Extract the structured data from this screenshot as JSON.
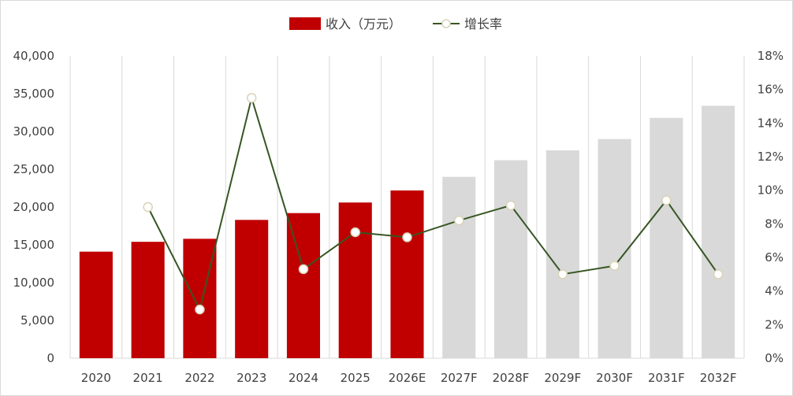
{
  "chart_data": {
    "type": "bar",
    "categories": [
      "2020",
      "2021",
      "2022",
      "2023",
      "2024",
      "2025",
      "2026E",
      "2027F",
      "2028F",
      "2029F",
      "2030F",
      "2031F",
      "2032F"
    ],
    "series": [
      {
        "name": "收入（万元）",
        "kind": "bar",
        "axis": "left",
        "values": [
          14100,
          15400,
          15800,
          18300,
          19200,
          20600,
          22200,
          24000,
          26200,
          27500,
          29000,
          31800,
          33400
        ],
        "colors": [
          "#c00000",
          "#c00000",
          "#c00000",
          "#c00000",
          "#c00000",
          "#c00000",
          "#c00000",
          "#d9d9d9",
          "#d9d9d9",
          "#d9d9d9",
          "#d9d9d9",
          "#d9d9d9",
          "#d9d9d9"
        ]
      },
      {
        "name": "增长率",
        "kind": "line",
        "axis": "right",
        "color": "#375623",
        "values": [
          null,
          0.09,
          0.029,
          0.155,
          0.053,
          0.075,
          0.072,
          0.082,
          0.091,
          0.05,
          0.055,
          0.094,
          0.05
        ]
      }
    ],
    "y_left": {
      "min": 0,
      "max": 40000,
      "step": 5000
    },
    "y_right": {
      "min": 0,
      "max": 0.18,
      "step": 0.02
    },
    "y_left_ticks": [
      "0",
      "5,000",
      "10,000",
      "15,000",
      "20,000",
      "25,000",
      "30,000",
      "35,000",
      "40,000"
    ],
    "y_right_ticks": [
      "0%",
      "2%",
      "4%",
      "6%",
      "8%",
      "10%",
      "12%",
      "14%",
      "16%",
      "18%"
    ],
    "grid": "vertical",
    "legend": "top-center"
  }
}
